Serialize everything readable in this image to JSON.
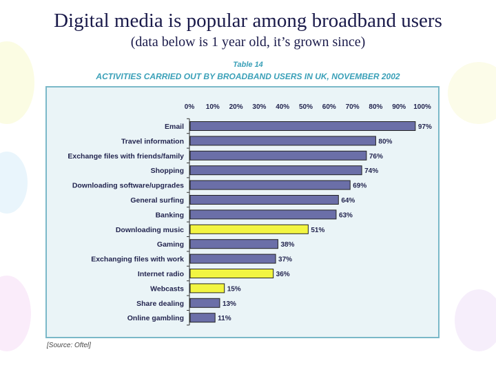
{
  "slide": {
    "title": "Digital media is popular among broadband users",
    "subtitle": "(data below is 1 year old, it’s grown since)",
    "table_label": "Table 14",
    "table_title": "ACTIVITIES CARRIED OUT BY BROADBAND USERS IN UK, NOVEMBER 2002",
    "source": "[Source: Oftel]"
  },
  "colors": {
    "bar_default": "#6b6fa8",
    "bar_highlight": "#f2f542",
    "label": "#23254f",
    "frame": "#7ab8c8"
  },
  "chart_data": {
    "type": "bar",
    "orientation": "horizontal",
    "title": "ACTIVITIES CARRIED OUT BY BROADBAND USERS IN UK, NOVEMBER 2002",
    "xlim": [
      0,
      100
    ],
    "x_ticks": [
      "0%",
      "10%",
      "20%",
      "30%",
      "40%",
      "50%",
      "60%",
      "70%",
      "80%",
      "90%",
      "100%"
    ],
    "categories": [
      "Email",
      "Travel information",
      "Exchange files with friends/family",
      "Shopping",
      "Downloading software/upgrades",
      "General surfing",
      "Banking",
      "Downloading music",
      "Gaming",
      "Exchanging files with work",
      "Internet radio",
      "Webcasts",
      "Share dealing",
      "Online gambling"
    ],
    "values": [
      97,
      80,
      76,
      74,
      69,
      64,
      63,
      51,
      38,
      37,
      36,
      15,
      13,
      11
    ],
    "value_labels": [
      "97%",
      "80%",
      "76%",
      "74%",
      "69%",
      "64%",
      "63%",
      "51%",
      "38%",
      "37%",
      "36%",
      "15%",
      "13%",
      "11%"
    ],
    "highlighted": [
      false,
      false,
      false,
      false,
      false,
      false,
      false,
      true,
      false,
      false,
      true,
      true,
      false,
      false
    ]
  }
}
